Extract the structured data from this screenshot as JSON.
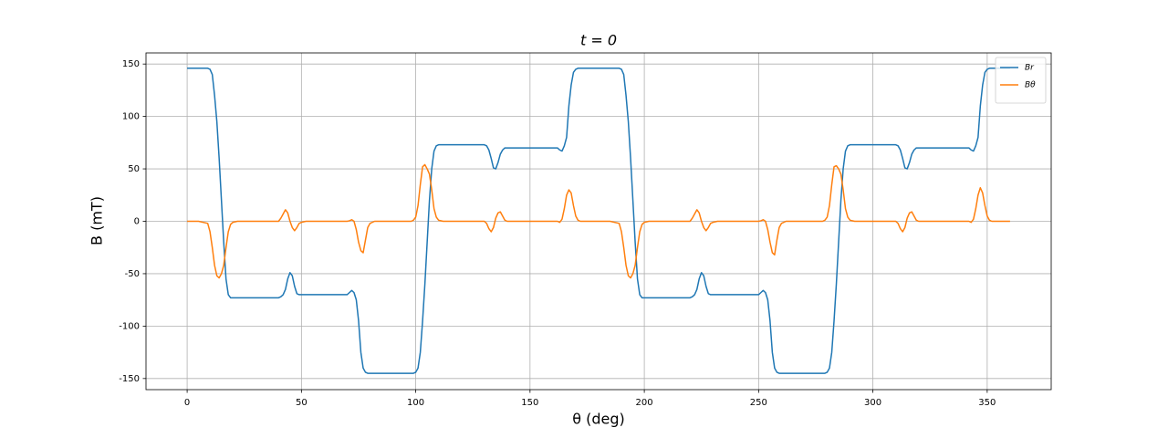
{
  "chart_data": {
    "type": "line",
    "title": "t = 0",
    "xlabel": "θ (deg)",
    "ylabel": "B (mT)",
    "x": [
      0,
      5,
      9,
      10,
      11,
      12,
      13,
      14,
      15,
      16,
      17,
      18,
      19,
      20,
      22,
      30,
      40,
      41,
      42,
      43,
      44,
      45,
      46,
      47,
      48,
      49,
      50,
      52,
      60,
      70,
      71,
      72,
      73,
      74,
      75,
      76,
      77,
      78,
      79,
      80,
      82,
      90,
      98,
      99,
      100,
      101,
      102,
      103,
      104,
      105,
      106,
      107,
      108,
      109,
      110,
      112,
      120,
      130,
      131,
      132,
      133,
      134,
      135,
      136,
      137,
      138,
      139,
      140,
      142,
      150,
      162,
      163,
      164,
      165,
      166,
      167,
      168,
      169,
      170,
      171,
      172,
      180,
      185,
      189,
      190,
      191,
      192,
      193,
      194,
      195,
      196,
      197,
      198,
      199,
      200,
      202,
      210,
      220,
      221,
      222,
      223,
      224,
      225,
      226,
      227,
      228,
      229,
      230,
      232,
      240,
      250,
      251,
      252,
      253,
      254,
      255,
      256,
      257,
      258,
      259,
      260,
      262,
      270,
      278,
      279,
      280,
      281,
      282,
      283,
      284,
      285,
      286,
      287,
      288,
      289,
      290,
      292,
      300,
      310,
      311,
      312,
      313,
      314,
      315,
      316,
      317,
      318,
      319,
      320,
      322,
      330,
      342,
      343,
      344,
      345,
      346,
      347,
      348,
      349,
      350,
      351,
      352,
      360
    ],
    "series": [
      {
        "name": "Br",
        "color": "#1f77b4",
        "values": [
          146,
          146,
          146,
          145,
          140,
          120,
          95,
          60,
          20,
          -20,
          -55,
          -70,
          -73,
          -73,
          -73,
          -73,
          -73,
          -72,
          -70,
          -65,
          -55,
          -49,
          -52,
          -62,
          -69,
          -70,
          -70,
          -70,
          -70,
          -70,
          -68,
          -66,
          -68,
          -75,
          -95,
          -125,
          -140,
          -144,
          -145,
          -145,
          -145,
          -145,
          -145,
          -145,
          -144,
          -140,
          -125,
          -95,
          -60,
          -20,
          20,
          50,
          67,
          72,
          73,
          73,
          73,
          73,
          72,
          68,
          60,
          51,
          50,
          56,
          64,
          68,
          70,
          70,
          70,
          70,
          70,
          68,
          67,
          72,
          80,
          110,
          130,
          142,
          145,
          146,
          146,
          146,
          146,
          146,
          145,
          140,
          120,
          95,
          60,
          20,
          -20,
          -55,
          -70,
          -73,
          -73,
          -73,
          -73,
          -73,
          -72,
          -70,
          -65,
          -55,
          -49,
          -52,
          -62,
          -69,
          -70,
          -70,
          -70,
          -70,
          -70,
          -68,
          -66,
          -68,
          -75,
          -95,
          -125,
          -140,
          -144,
          -145,
          -145,
          -145,
          -145,
          -145,
          -145,
          -144,
          -140,
          -125,
          -95,
          -60,
          -20,
          20,
          50,
          67,
          72,
          73,
          73,
          73,
          73,
          72,
          68,
          60,
          51,
          50,
          56,
          64,
          68,
          70,
          70,
          70,
          70,
          70,
          68,
          67,
          72,
          80,
          110,
          130,
          142,
          145,
          146,
          146,
          146
        ]
      },
      {
        "name": "Bθ",
        "color": "#ff7f0e",
        "values": [
          0,
          0,
          -2,
          -10,
          -25,
          -42,
          -52,
          -54,
          -50,
          -42,
          -25,
          -10,
          -3,
          -1,
          0,
          0,
          0,
          3,
          7,
          11,
          8,
          0,
          -6,
          -9,
          -6,
          -2,
          -1,
          0,
          0,
          0,
          0.5,
          1.5,
          0,
          -8,
          -20,
          -28,
          -30,
          -18,
          -6,
          -2,
          0,
          0,
          0,
          1,
          4,
          15,
          35,
          52,
          54,
          50,
          45,
          30,
          12,
          4,
          1,
          0,
          0,
          0,
          -2,
          -7,
          -10,
          -6,
          3,
          8,
          9,
          5,
          1,
          0,
          0,
          0,
          0,
          -1,
          2,
          12,
          25,
          30,
          27,
          15,
          5,
          1,
          0,
          0,
          0,
          -2,
          -10,
          -25,
          -42,
          -52,
          -54,
          -50,
          -42,
          -25,
          -10,
          -3,
          -1,
          0,
          0,
          0,
          3,
          7,
          11,
          8,
          0,
          -6,
          -9,
          -6,
          -2,
          -1,
          0,
          0,
          0,
          0.5,
          1.5,
          0,
          -8,
          -20,
          -30,
          -32,
          -18,
          -6,
          -2,
          0,
          0,
          0,
          1,
          4,
          15,
          35,
          52,
          53,
          50,
          45,
          30,
          12,
          4,
          1,
          0,
          0,
          0,
          -2,
          -7,
          -10,
          -6,
          3,
          8,
          9,
          5,
          1,
          0,
          0,
          0,
          0,
          -1,
          2,
          12,
          25,
          32,
          27,
          15,
          5,
          1,
          0,
          0
        ]
      }
    ],
    "xlim": [
      -18,
      378
    ],
    "ylim": [
      -160.6,
      160.6
    ],
    "xticks": [
      0,
      50,
      100,
      150,
      200,
      250,
      300,
      350
    ],
    "yticks": [
      -150,
      -100,
      -50,
      0,
      50,
      100,
      150
    ],
    "grid": true,
    "legend": "upper right"
  }
}
